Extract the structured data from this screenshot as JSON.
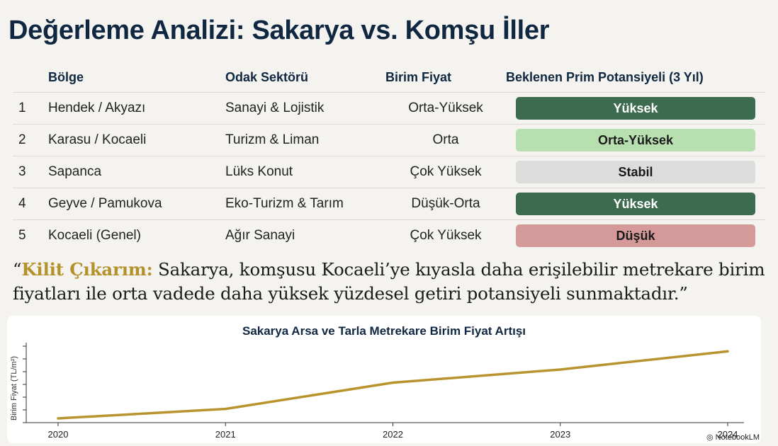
{
  "page": {
    "title": "Değerleme Analizi: Sakarya vs. Komşu İller"
  },
  "table": {
    "headers": {
      "region": "Bölge",
      "sector": "Odak Sektörü",
      "price": "Birim Fiyat",
      "premium": "Beklenen Prim Potansiyeli (3 Yıl)"
    },
    "rows": [
      {
        "idx": "1",
        "region": "Hendek / Akyazı",
        "sector": "Sanayi & Lojistik",
        "price": "Orta-Yüksek",
        "premium": "Yüksek",
        "badge_bg": "#3d6b4f",
        "badge_fg": "#ffffff"
      },
      {
        "idx": "2",
        "region": "Karasu / Kocaeli",
        "sector": "Turizm & Liman",
        "price": "Orta",
        "premium": "Orta-Yüksek",
        "badge_bg": "#b8dfb0",
        "badge_fg": "#1a1a1a"
      },
      {
        "idx": "3",
        "region": "Sapanca",
        "sector": "Lüks Konut",
        "price": "Çok Yüksek",
        "premium": "Stabil",
        "badge_bg": "#dcdcdc",
        "badge_fg": "#1a1a1a"
      },
      {
        "idx": "4",
        "region": "Geyve / Pamukova",
        "sector": "Eko-Turizm & Tarım",
        "price": "Düşük-Orta",
        "premium": "Yüksek",
        "badge_bg": "#3d6b4f",
        "badge_fg": "#ffffff"
      },
      {
        "idx": "5",
        "region": "Kocaeli (Genel)",
        "sector": "Ağır Sanayi",
        "price": "Çok Yüksek",
        "premium": "Düşük",
        "badge_bg": "#d49a9a",
        "badge_fg": "#1a1a1a"
      }
    ]
  },
  "quote": {
    "open_mark": "“",
    "highlight": "Kilit Çıkarım:",
    "text": " Sakarya, komşusu Kocaeli’ye kıyasla daha erişilebilir metrekare birim fiyatları ile orta vadede daha yüksek yüzdesel getiri potansiyeli sunmaktadır.”",
    "highlight_color": "#b5912a"
  },
  "chart_data": {
    "type": "line",
    "title": "Sakarya Arsa ve Tarla Metrekare Birim Fiyat Artışı",
    "xlabel": "",
    "ylabel": "Birim Fiyat (TL/m²)",
    "x": [
      "2020",
      "2021",
      "2022",
      "2023",
      "2024"
    ],
    "series": [
      {
        "values": [
          0.0,
          0.13,
          0.49,
          0.67,
          0.92
        ]
      }
    ],
    "ylim": [
      0,
      1
    ],
    "y_tick_count": 7,
    "y_tick_labels": false,
    "grid": false,
    "line_color": "#b8932e"
  },
  "branding": {
    "label": "NotebookLM"
  }
}
